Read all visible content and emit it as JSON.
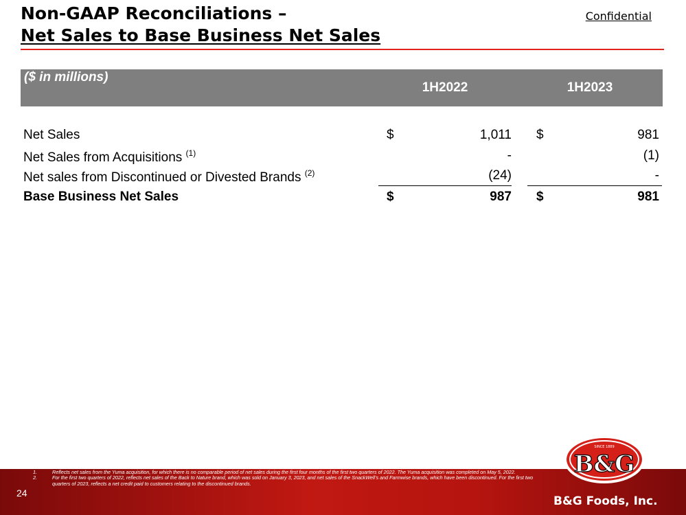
{
  "header": {
    "title_line1": "Non-GAAP Reconciliations –",
    "title_line2": "Net Sales to Base Business Net Sales",
    "confidential": "Confidential"
  },
  "table": {
    "units_label": "($ in millions)",
    "columns": [
      "1H2022",
      "1H2023"
    ],
    "rows": [
      {
        "label": "Net Sales",
        "note": "",
        "cur1": "$",
        "val1": "1,011",
        "cur2": "$",
        "val2": "981"
      },
      {
        "label": "Net Sales from Acquisitions",
        "note": "(1)",
        "cur1": "",
        "val1": "-",
        "cur2": "",
        "val2": "(1)"
      },
      {
        "label": "Net sales from Discontinued or Divested Brands",
        "note": "(2)",
        "cur1": "",
        "val1": "(24)",
        "cur2": "",
        "val2": "-"
      },
      {
        "label": "Base Business Net Sales",
        "note": "",
        "cur1": "$",
        "val1": "987",
        "cur2": "$",
        "val2": "981"
      }
    ]
  },
  "footer": {
    "page_number": "24",
    "footnotes": [
      {
        "num": "1.",
        "text": "Reflects net sales from the Yuma acquisition, for which there is no comparable period of net sales during the first four months of the first two quarters of 2022. The Yuma acquisition was completed on May 5, 2022."
      },
      {
        "num": "2.",
        "text": "For the first two quarters of 2022, reflects net sales of the Back to Nature brand, which was sold on January 3, 2023, and net sales of the SnackWell’s and Farmwise brands, which have been discontinued. For the first two quarters of 2023, reflects a net credit paid to customers relating to the discontinued brands."
      }
    ],
    "company_name": "B&G Foods, Inc.",
    "logo_text": "B&G",
    "logo_since": "SINCE 1889"
  },
  "colors": {
    "accent_red": "#e3231b",
    "header_gray": "#7f7f7f",
    "footer_red": "#c11812"
  }
}
